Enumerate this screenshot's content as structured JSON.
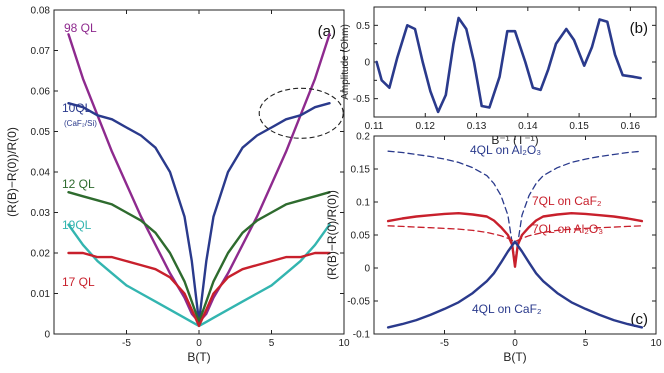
{
  "chart_data": [
    {
      "panel": "a",
      "panel_label": "(a)",
      "type": "line",
      "xlabel": "B(T)",
      "ylabel": "(R(B)−R(0))/R(0)",
      "xlim": [
        -10,
        10
      ],
      "ylim": [
        0,
        0.08
      ],
      "xticks": [
        -5,
        0,
        5,
        10
      ],
      "yticks": [
        0,
        0.01,
        0.02,
        0.03,
        0.04,
        0.05,
        0.06,
        0.07,
        0.08
      ],
      "grid": false,
      "annotation": "dashed ellipse around 10QL curve near B = 7 T",
      "series": [
        {
          "name": "98 QL",
          "color": "#8e2a8e",
          "x": [
            -9,
            -8,
            -7,
            -6,
            -5,
            -4,
            -3,
            -2,
            -1,
            -0.5,
            0,
            0.5,
            1,
            2,
            3,
            4,
            5,
            6,
            7,
            8,
            9
          ],
          "y": [
            0.074,
            0.063,
            0.054,
            0.045,
            0.037,
            0.029,
            0.022,
            0.015,
            0.009,
            0.005,
            0.003,
            0.005,
            0.009,
            0.015,
            0.022,
            0.029,
            0.037,
            0.045,
            0.054,
            0.063,
            0.074
          ]
        },
        {
          "name": "10QL",
          "sublabel": "(CaF₂/Si)",
          "color": "#2a3a8c",
          "x": [
            -9,
            -8,
            -7,
            -6,
            -5,
            -4,
            -3,
            -2,
            -1,
            -0.5,
            0,
            0.5,
            1,
            2,
            3,
            4,
            5,
            6,
            7,
            8,
            9
          ],
          "y": [
            0.057,
            0.056,
            0.054,
            0.053,
            0.051,
            0.049,
            0.046,
            0.04,
            0.029,
            0.018,
            0.003,
            0.018,
            0.029,
            0.04,
            0.046,
            0.049,
            0.051,
            0.053,
            0.054,
            0.056,
            0.057
          ]
        },
        {
          "name": "12 QL",
          "color": "#2e6b2e",
          "x": [
            -9,
            -8,
            -7,
            -6,
            -5,
            -4,
            -3,
            -2,
            -1,
            -0.5,
            0,
            0.5,
            1,
            2,
            3,
            4,
            5,
            6,
            7,
            8,
            9
          ],
          "y": [
            0.035,
            0.034,
            0.033,
            0.032,
            0.03,
            0.028,
            0.025,
            0.02,
            0.013,
            0.008,
            0.003,
            0.008,
            0.013,
            0.02,
            0.025,
            0.028,
            0.03,
            0.032,
            0.033,
            0.034,
            0.035
          ]
        },
        {
          "name": "19QL",
          "color": "#33b5b0",
          "x": [
            -9,
            -8,
            -7,
            -6,
            -5,
            -4,
            -3,
            -2,
            -1,
            -0.5,
            0,
            0.5,
            1,
            2,
            3,
            4,
            5,
            6,
            7,
            8,
            9
          ],
          "y": [
            0.027,
            0.022,
            0.018,
            0.015,
            0.012,
            0.01,
            0.008,
            0.006,
            0.004,
            0.003,
            0.002,
            0.003,
            0.004,
            0.006,
            0.008,
            0.01,
            0.012,
            0.015,
            0.018,
            0.022,
            0.027
          ]
        },
        {
          "name": "17 QL",
          "color": "#c8202c",
          "x": [
            -9,
            -8,
            -7,
            -6,
            -5,
            -4,
            -3,
            -2,
            -1,
            -0.5,
            0,
            0.5,
            1,
            2,
            3,
            4,
            5,
            6,
            7,
            8,
            9
          ],
          "y": [
            0.02,
            0.02,
            0.019,
            0.019,
            0.018,
            0.017,
            0.016,
            0.014,
            0.01,
            0.006,
            0.002,
            0.006,
            0.01,
            0.014,
            0.016,
            0.017,
            0.018,
            0.019,
            0.019,
            0.02,
            0.02
          ]
        }
      ]
    },
    {
      "panel": "b",
      "panel_label": "(b)",
      "type": "line",
      "xlabel": "B⁻¹ (T⁻¹)",
      "ylabel": "Amplitude (Ohm)",
      "xlim": [
        0.11,
        0.165
      ],
      "ylim": [
        -0.75,
        0.75
      ],
      "xticks": [
        0.11,
        0.12,
        0.13,
        0.14,
        0.15,
        0.16
      ],
      "xtick_labels": [
        "0.11",
        "0.12",
        "0.13",
        "0.14",
        "0.15",
        "0.16"
      ],
      "yticks": [
        -0.5,
        0,
        0.5
      ],
      "yticks_minor": [
        -0.25,
        0.25
      ],
      "ytick_labels": [
        "-0.5",
        "0",
        "0.5"
      ],
      "grid": false,
      "series": [
        {
          "color": "#2a3a8c",
          "x": [
            0.1105,
            0.1115,
            0.113,
            0.1145,
            0.1165,
            0.118,
            0.1195,
            0.121,
            0.1225,
            0.124,
            0.1255,
            0.1265,
            0.128,
            0.1295,
            0.131,
            0.1325,
            0.1345,
            0.136,
            0.1375,
            0.1395,
            0.141,
            0.1425,
            0.144,
            0.1455,
            0.1475,
            0.149,
            0.151,
            0.1525,
            0.154,
            0.1555,
            0.157,
            0.1585,
            0.1605,
            0.162
          ],
          "y": [
            0.0,
            -0.25,
            -0.35,
            0.05,
            0.5,
            0.45,
            0.0,
            -0.4,
            -0.68,
            -0.45,
            0.25,
            0.6,
            0.45,
            0.0,
            -0.6,
            -0.62,
            -0.2,
            0.42,
            0.42,
            0.0,
            -0.35,
            -0.38,
            -0.1,
            0.25,
            0.45,
            0.3,
            -0.05,
            0.2,
            0.58,
            0.55,
            0.1,
            -0.18,
            -0.2,
            -0.22
          ]
        }
      ]
    },
    {
      "panel": "c",
      "panel_label": "(c)",
      "type": "line",
      "xlabel": "B(T)",
      "ylabel": "(R(B)−R(0)/R(0))",
      "xlim": [
        -10,
        10
      ],
      "ylim": [
        -0.1,
        0.2
      ],
      "xticks": [
        -5,
        0,
        5,
        10
      ],
      "yticks": [
        -0.1,
        -0.05,
        0,
        0.05,
        0.1,
        0.15,
        0.2
      ],
      "ytick_labels": [
        "-0.1",
        "-0.05",
        "0",
        "0.05",
        "0.1",
        "0.15",
        "0.2"
      ],
      "grid": false,
      "series": [
        {
          "name": "4QL on Al₂O₃",
          "color": "#2a3a8c",
          "dash": "dashed",
          "x": [
            -9,
            -8,
            -7,
            -6,
            -5,
            -4,
            -3,
            -2,
            -1.5,
            -1,
            -0.5,
            0,
            0.5,
            1,
            1.5,
            2,
            3,
            4,
            5,
            6,
            7,
            8,
            9
          ],
          "y": [
            0.177,
            0.175,
            0.172,
            0.169,
            0.165,
            0.16,
            0.152,
            0.14,
            0.128,
            0.11,
            0.08,
            0.01,
            0.08,
            0.11,
            0.128,
            0.14,
            0.152,
            0.16,
            0.165,
            0.169,
            0.172,
            0.175,
            0.177
          ]
        },
        {
          "name": "7QL on CaF₂",
          "color": "#c8202c",
          "dash": "solid",
          "x": [
            -9,
            -8,
            -7,
            -6,
            -5,
            -4,
            -3,
            -2,
            -1.5,
            -1,
            -0.5,
            -0.2,
            0,
            0.2,
            0.5,
            1,
            1.5,
            2,
            3,
            4,
            5,
            6,
            7,
            8,
            9
          ],
          "y": [
            0.071,
            0.075,
            0.078,
            0.08,
            0.082,
            0.083,
            0.081,
            0.078,
            0.072,
            0.062,
            0.05,
            0.035,
            0.002,
            0.035,
            0.05,
            0.062,
            0.072,
            0.078,
            0.081,
            0.083,
            0.082,
            0.08,
            0.078,
            0.075,
            0.071
          ]
        },
        {
          "name": "7QL on Al₂O₃",
          "color": "#c8202c",
          "dash": "dashed",
          "x": [
            -9,
            -8,
            -7,
            -6,
            -5,
            -4,
            -3,
            -2,
            -1,
            -0.5,
            0,
            0.5,
            1,
            2,
            3,
            4,
            5,
            6,
            7,
            8,
            9
          ],
          "y": [
            0.064,
            0.063,
            0.062,
            0.061,
            0.06,
            0.059,
            0.057,
            0.054,
            0.049,
            0.045,
            0.04,
            0.045,
            0.049,
            0.054,
            0.057,
            0.059,
            0.06,
            0.061,
            0.062,
            0.063,
            0.064
          ]
        },
        {
          "name": "4QL on CaF₂",
          "color": "#2a3a8c",
          "dash": "solid",
          "x": [
            -9,
            -8,
            -7,
            -6,
            -5,
            -4,
            -3,
            -2,
            -1.5,
            -1,
            -0.5,
            0,
            0.5,
            1,
            1.5,
            2,
            3,
            4,
            5,
            6,
            7,
            8,
            9
          ],
          "y": [
            -0.09,
            -0.085,
            -0.079,
            -0.071,
            -0.062,
            -0.052,
            -0.038,
            -0.02,
            -0.008,
            0.008,
            0.025,
            0.04,
            0.025,
            0.008,
            -0.008,
            -0.02,
            -0.038,
            -0.052,
            -0.062,
            -0.071,
            -0.079,
            -0.085,
            -0.09
          ]
        }
      ]
    }
  ]
}
